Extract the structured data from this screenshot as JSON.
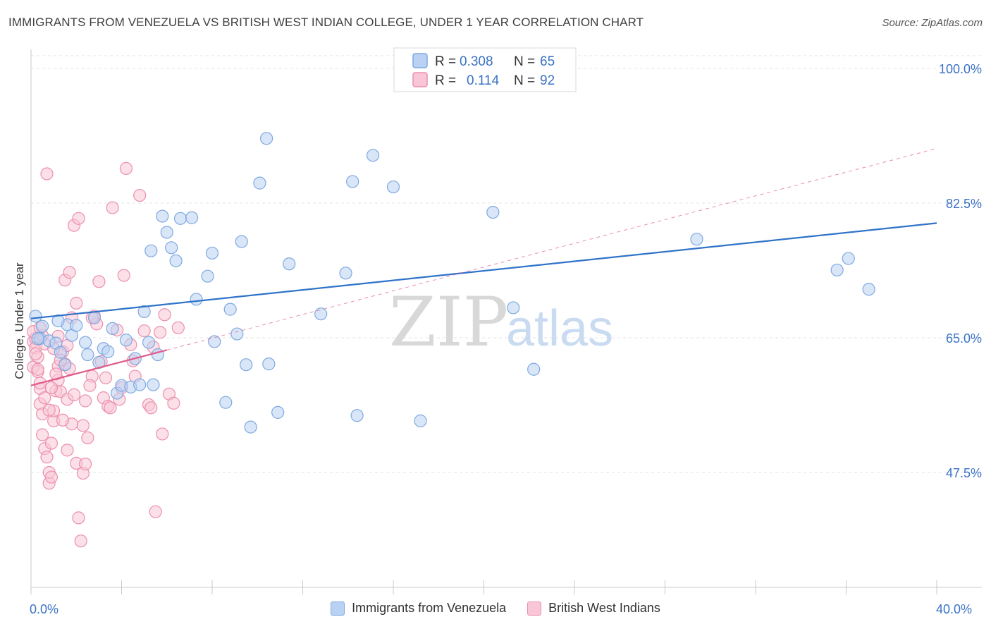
{
  "header": {
    "title": "IMMIGRANTS FROM VENEZUELA VS BRITISH WEST INDIAN COLLEGE, UNDER 1 YEAR CORRELATION CHART",
    "source": "Source: ZipAtlas.com"
  },
  "watermark": {
    "zip": "ZIP",
    "atlas": "atlas"
  },
  "colors": {
    "blue_fill": "#b9d2f3",
    "blue_stroke": "#7ea9e1",
    "blue_line": "#2f73c9",
    "pink_fill": "#f8c6d6",
    "pink_stroke": "#ec8fae",
    "pink_line": "#e05a8a",
    "axis_label": "#3a72c4"
  },
  "stats_legend": [
    {
      "r_label": "R =",
      "r_value": "0.308",
      "n_label": "N =",
      "n_value": "65"
    },
    {
      "r_label": "R =",
      "r_value": "0.114",
      "n_label": "N =",
      "n_value": "92"
    }
  ],
  "chart_data": {
    "type": "scatter",
    "title": "IMMIGRANTS FROM VENEZUELA VS BRITISH WEST INDIAN COLLEGE, UNDER 1 YEAR CORRELATION CHART",
    "xlabel": "",
    "ylabel": "College, Under 1 year",
    "xlim": [
      0,
      40
    ],
    "ylim": [
      30,
      105
    ],
    "x_tick_labels": [
      "0.0%",
      "40.0%"
    ],
    "y_ticks": [
      47.5,
      65.0,
      82.5,
      100.0
    ],
    "y_tick_labels": [
      "47.5%",
      "65.0%",
      "82.5%",
      "100.0%"
    ],
    "grid": true,
    "legend_position": "bottom-center",
    "series": [
      {
        "name": "Immigrants from Venezuela",
        "color": "#7ea9e1",
        "trend": {
          "x": [
            0,
            40
          ],
          "y": [
            67.5,
            79.9
          ]
        },
        "points": [
          [
            0.2,
            67.8
          ],
          [
            0.4,
            64.9
          ],
          [
            0.5,
            66.5
          ],
          [
            0.8,
            64.6
          ],
          [
            1.1,
            64.3
          ],
          [
            1.3,
            63.1
          ],
          [
            1.5,
            61.5
          ],
          [
            1.6,
            66.7
          ],
          [
            1.8,
            65.3
          ],
          [
            2.0,
            66.6
          ],
          [
            2.4,
            64.4
          ],
          [
            2.5,
            62.8
          ],
          [
            2.8,
            67.6
          ],
          [
            3.0,
            61.8
          ],
          [
            3.2,
            63.6
          ],
          [
            3.4,
            63.2
          ],
          [
            3.6,
            66.2
          ],
          [
            3.8,
            57.8
          ],
          [
            4.0,
            58.8
          ],
          [
            4.2,
            64.7
          ],
          [
            4.4,
            58.6
          ],
          [
            4.6,
            62.3
          ],
          [
            4.8,
            58.9
          ],
          [
            5.0,
            68.4
          ],
          [
            5.2,
            64.4
          ],
          [
            5.3,
            76.3
          ],
          [
            5.4,
            58.9
          ],
          [
            5.6,
            62.8
          ],
          [
            5.8,
            80.8
          ],
          [
            6.0,
            78.7
          ],
          [
            6.2,
            76.7
          ],
          [
            6.4,
            75.0
          ],
          [
            6.6,
            80.5
          ],
          [
            7.1,
            80.6
          ],
          [
            7.3,
            70.0
          ],
          [
            7.8,
            73.0
          ],
          [
            8.0,
            76.0
          ],
          [
            8.1,
            64.5
          ],
          [
            8.6,
            56.6
          ],
          [
            8.8,
            68.7
          ],
          [
            9.1,
            65.5
          ],
          [
            9.3,
            77.5
          ],
          [
            9.5,
            61.5
          ],
          [
            9.7,
            53.4
          ],
          [
            10.1,
            85.1
          ],
          [
            10.4,
            90.9
          ],
          [
            10.5,
            61.6
          ],
          [
            10.9,
            55.3
          ],
          [
            11.4,
            74.6
          ],
          [
            12.8,
            68.1
          ],
          [
            13.9,
            73.4
          ],
          [
            14.2,
            85.3
          ],
          [
            14.4,
            54.9
          ],
          [
            15.1,
            88.7
          ],
          [
            16.0,
            84.6
          ],
          [
            17.2,
            54.2
          ],
          [
            20.4,
            81.3
          ],
          [
            21.3,
            68.9
          ],
          [
            22.2,
            60.9
          ],
          [
            29.4,
            77.8
          ],
          [
            35.6,
            73.8
          ],
          [
            36.1,
            75.3
          ],
          [
            37.0,
            71.3
          ],
          [
            1.2,
            67.2
          ],
          [
            0.3,
            64.9
          ]
        ]
      },
      {
        "name": "British West Indians",
        "color": "#ec8fae",
        "trend": {
          "x": [
            0,
            6
          ],
          "y": [
            58.8,
            63.4
          ]
        },
        "trend_extended": {
          "x": [
            6,
            40
          ],
          "y": [
            63.4,
            89.6
          ]
        },
        "points": [
          [
            0.1,
            64.5
          ],
          [
            0.1,
            61.2
          ],
          [
            0.2,
            64.9
          ],
          [
            0.2,
            63.7
          ],
          [
            0.3,
            62.5
          ],
          [
            0.3,
            60.6
          ],
          [
            0.4,
            58.4
          ],
          [
            0.4,
            56.4
          ],
          [
            0.5,
            55.1
          ],
          [
            0.5,
            52.4
          ],
          [
            0.6,
            50.6
          ],
          [
            0.7,
            49.5
          ],
          [
            0.8,
            46.1
          ],
          [
            0.8,
            47.5
          ],
          [
            0.9,
            51.3
          ],
          [
            1.0,
            54.2
          ],
          [
            1.0,
            55.5
          ],
          [
            1.1,
            58.1
          ],
          [
            1.2,
            59.5
          ],
          [
            1.2,
            61.3
          ],
          [
            1.3,
            58.0
          ],
          [
            1.4,
            63.2
          ],
          [
            1.5,
            61.6
          ],
          [
            1.6,
            64.0
          ],
          [
            1.6,
            57.0
          ],
          [
            1.8,
            53.8
          ],
          [
            1.9,
            57.6
          ],
          [
            2.0,
            48.7
          ],
          [
            2.1,
            41.6
          ],
          [
            2.2,
            38.6
          ],
          [
            2.3,
            47.4
          ],
          [
            2.4,
            48.6
          ],
          [
            2.4,
            56.8
          ],
          [
            2.5,
            52.0
          ],
          [
            2.7,
            60.0
          ],
          [
            2.8,
            67.8
          ],
          [
            3.0,
            72.3
          ],
          [
            3.1,
            61.9
          ],
          [
            3.2,
            57.2
          ],
          [
            3.4,
            56.1
          ],
          [
            3.5,
            55.9
          ],
          [
            3.6,
            81.9
          ],
          [
            3.8,
            66.0
          ],
          [
            4.0,
            58.5
          ],
          [
            4.1,
            73.1
          ],
          [
            4.2,
            87.0
          ],
          [
            4.4,
            64.1
          ],
          [
            4.6,
            60.0
          ],
          [
            5.0,
            65.9
          ],
          [
            5.2,
            56.3
          ],
          [
            5.4,
            63.8
          ],
          [
            5.5,
            42.4
          ],
          [
            5.7,
            65.7
          ],
          [
            5.9,
            68.0
          ],
          [
            6.1,
            57.7
          ],
          [
            6.3,
            56.5
          ],
          [
            6.5,
            66.3
          ],
          [
            0.6,
            64.2
          ],
          [
            0.9,
            58.5
          ],
          [
            1.3,
            62.1
          ],
          [
            1.5,
            72.5
          ],
          [
            1.7,
            73.5
          ],
          [
            1.9,
            79.6
          ],
          [
            2.1,
            80.5
          ],
          [
            0.7,
            86.3
          ],
          [
            2.9,
            66.8
          ],
          [
            4.8,
            83.5
          ],
          [
            5.8,
            52.5
          ],
          [
            1.1,
            60.3
          ],
          [
            0.5,
            65.3
          ],
          [
            0.2,
            62.9
          ],
          [
            0.4,
            59.1
          ],
          [
            1.8,
            67.6
          ],
          [
            2.6,
            58.8
          ],
          [
            0.8,
            55.6
          ],
          [
            0.3,
            60.9
          ],
          [
            1.0,
            63.6
          ],
          [
            1.4,
            54.3
          ],
          [
            2.3,
            53.6
          ],
          [
            3.3,
            59.8
          ],
          [
            4.5,
            62.0
          ],
          [
            0.6,
            57.2
          ],
          [
            1.6,
            50.4
          ],
          [
            2.0,
            69.5
          ],
          [
            2.7,
            67.6
          ],
          [
            0.9,
            46.9
          ],
          [
            1.2,
            65.2
          ],
          [
            3.9,
            57.0
          ],
          [
            0.1,
            65.8
          ],
          [
            5.3,
            55.9
          ],
          [
            0.4,
            66.3
          ],
          [
            1.7,
            61.0
          ]
        ]
      }
    ]
  },
  "bottom_legend": [
    {
      "label": "Immigrants from Venezuela"
    },
    {
      "label": "British West Indians"
    }
  ]
}
